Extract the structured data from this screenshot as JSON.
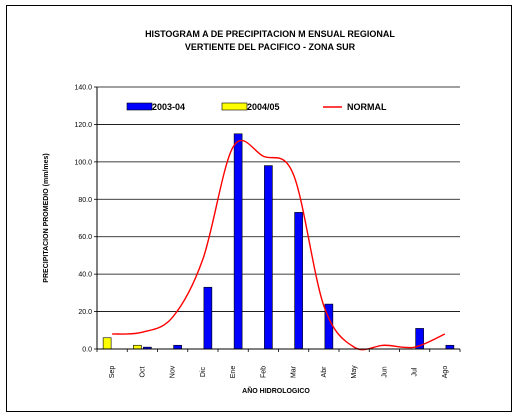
{
  "chart_data": {
    "type": "bar",
    "title_lines": [
      "HISTOGRAM A DE PRECIPITACION M ENSUAL REGIONAL",
      "VERTIENTE DEL PACIFICO - ZONA SUR"
    ],
    "xlabel": "AÑO HIDROLOGICO",
    "ylabel": "PRECIPITACION PROMEDIO (mm/mes)",
    "categories": [
      "Sep",
      "Oct",
      "Nov",
      "Dic",
      "Ene",
      "Feb",
      "Mar",
      "Abr",
      "May",
      "Jun",
      "Jul",
      "Ago"
    ],
    "ylim": [
      0,
      140
    ],
    "y_ticks": [
      "0.0",
      "20.0",
      "40.0",
      "60.0",
      "80.0",
      "100.0",
      "120.0",
      "140.0"
    ],
    "y_tick_values": [
      0,
      20,
      40,
      60,
      80,
      100,
      120,
      140
    ],
    "grid": true,
    "legend_position": "top",
    "series": [
      {
        "name": "2003-04",
        "kind": "bar",
        "color": "#0000ff",
        "values": [
          null,
          1,
          2,
          33,
          115,
          98,
          73,
          24,
          null,
          null,
          11,
          2
        ]
      },
      {
        "name": "2004/05",
        "kind": "bar",
        "color": "#ffff00",
        "values": [
          6,
          2,
          null,
          null,
          null,
          null,
          null,
          null,
          null,
          null,
          null,
          null
        ]
      },
      {
        "name": "NORMAL",
        "kind": "line",
        "color": "#ff0000",
        "values": [
          8,
          9,
          17,
          48,
          108,
          103,
          93,
          23,
          1,
          2,
          1,
          8
        ]
      }
    ]
  }
}
